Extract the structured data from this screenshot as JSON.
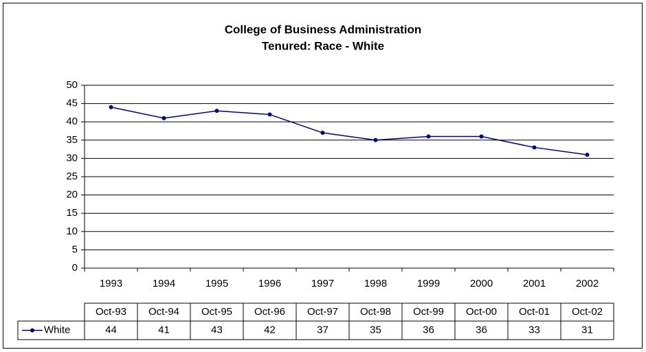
{
  "chart_data": {
    "type": "line",
    "title": "College of Business Administration",
    "subtitle": "Tenured: Race - White",
    "categories": [
      "1993",
      "1994",
      "1995",
      "1996",
      "1997",
      "1998",
      "1999",
      "2000",
      "2001",
      "2002"
    ],
    "table_headers": [
      "Oct-93",
      "Oct-94",
      "Oct-95",
      "Oct-96",
      "Oct-97",
      "Oct-98",
      "Oct-99",
      "Oct-00",
      "Oct-01",
      "Oct-02"
    ],
    "series": [
      {
        "name": "White",
        "color": "#000080",
        "values": [
          44,
          41,
          43,
          42,
          37,
          35,
          36,
          36,
          33,
          31
        ]
      }
    ],
    "ylim": [
      0,
      50
    ],
    "yticks": [
      0,
      5,
      10,
      15,
      20,
      25,
      30,
      35,
      40,
      45,
      50
    ],
    "grid": true
  }
}
